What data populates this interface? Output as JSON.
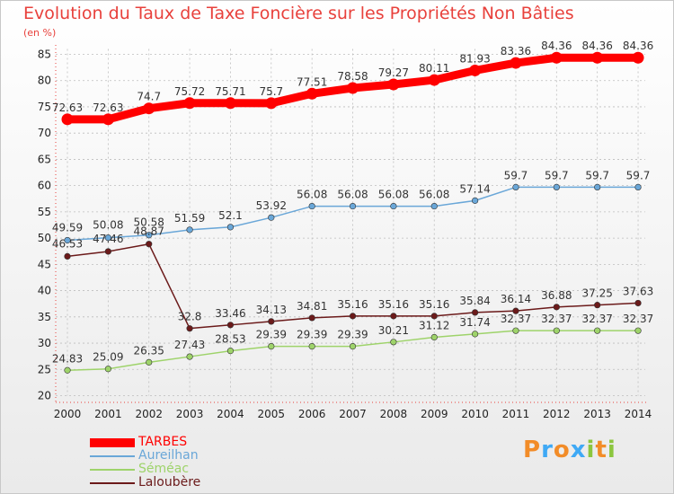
{
  "chart_data": {
    "type": "line",
    "title": "Evolution du Taux de Taxe Foncière sur les Propriétés Non Bâties",
    "ylabel": "(en %)",
    "xlabel": "",
    "ylim": [
      20,
      85
    ],
    "yticks": [
      "20",
      "25",
      "30",
      "35",
      "40",
      "45",
      "50",
      "55",
      "60",
      "65",
      "70",
      "75",
      "80",
      "85"
    ],
    "categories": [
      "2000",
      "2001",
      "2002",
      "2003",
      "2004",
      "2005",
      "2006",
      "2007",
      "2008",
      "2009",
      "2010",
      "2011",
      "2012",
      "2013",
      "2014"
    ],
    "grid": true,
    "legend_position": "bottom-left",
    "series": [
      {
        "name": "TARBES",
        "color": "#ff0000",
        "values": [
          72.63,
          72.63,
          74.7,
          75.72,
          75.71,
          75.7,
          77.51,
          78.58,
          79.27,
          80.11,
          81.93,
          83.36,
          84.36,
          84.36,
          84.36
        ],
        "labels": [
          "72.63",
          "72.63",
          "74.7",
          "75.72",
          "75.71",
          "75.7",
          "77.51",
          "78.58",
          "79.27",
          "80.11",
          "81.93",
          "83.36",
          "84.36",
          "84.36",
          "84.36"
        ]
      },
      {
        "name": "Aureilhan",
        "color": "#6aa7d8",
        "values": [
          49.59,
          50.08,
          50.58,
          51.59,
          52.1,
          53.92,
          56.08,
          56.08,
          56.08,
          56.08,
          57.14,
          59.7,
          59.7,
          59.7,
          59.7
        ],
        "labels": [
          "49.59",
          "50.08",
          "50.58",
          "51.59",
          "52.1",
          "53.92",
          "56.08",
          "56.08",
          "56.08",
          "56.08",
          "57.14",
          "59.7",
          "59.7",
          "59.7",
          "59.7"
        ]
      },
      {
        "name": "Séméac",
        "color": "#9ed36a",
        "values": [
          24.83,
          25.09,
          26.35,
          27.43,
          28.53,
          29.39,
          29.39,
          29.39,
          30.21,
          31.12,
          31.74,
          32.37,
          32.37,
          32.37,
          32.37
        ],
        "labels": [
          "24.83",
          "25.09",
          "26.35",
          "27.43",
          "28.53",
          "29.39",
          "29.39",
          "29.39",
          "30.21",
          "31.12",
          "31.74",
          "32.37",
          "32.37",
          "32.37",
          "32.37"
        ]
      },
      {
        "name": "Laloubère",
        "color": "#6b1a1a",
        "values": [
          46.53,
          47.46,
          48.87,
          32.8,
          33.46,
          34.13,
          34.81,
          35.16,
          35.16,
          35.16,
          35.84,
          36.14,
          36.88,
          37.25,
          37.63
        ],
        "labels": [
          "46.53",
          "47.46",
          "48.87",
          "32.8",
          "33.46",
          "34.13",
          "34.81",
          "35.16",
          "35.16",
          "35.16",
          "35.84",
          "36.14",
          "36.88",
          "37.25",
          "37.63"
        ]
      }
    ]
  },
  "brand": {
    "letters": [
      "P",
      "r",
      "o",
      "x",
      "i",
      "t",
      "i"
    ],
    "colors": [
      "#f28c28",
      "#3fa9f5",
      "#f28c28",
      "#3fa9f5",
      "#8cc63f",
      "#f28c28",
      "#8cc63f"
    ]
  }
}
